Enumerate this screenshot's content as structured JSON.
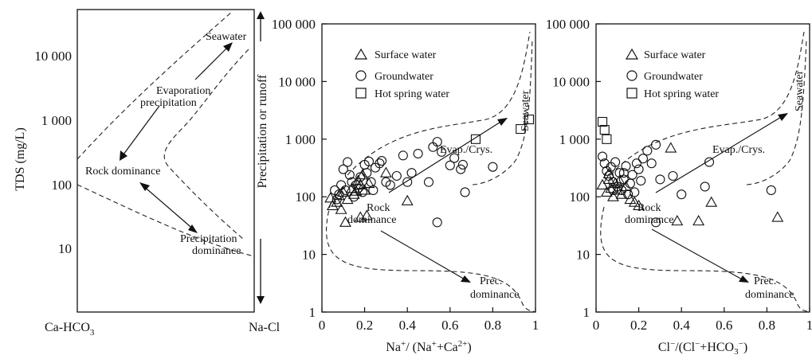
{
  "chart_data": [
    {
      "type": "diagram",
      "panel": "gibbs-schematic",
      "ylabel": "TDS (mg/L)",
      "ytick_labels": [
        "10",
        "100",
        "1 000",
        "10 000"
      ],
      "xlabel_left": "Ca-HCO",
      "xlabel_left_sub": "3",
      "xlabel_right": "Na-Cl",
      "annotations": {
        "seawater": "Seawater",
        "evap_line1": "Evaporation",
        "evap_line2": "precipitation",
        "rock": "Rock dominance",
        "prec_line1": "Precipitation",
        "prec_line2": "dominance"
      },
      "side_label": "Precipitation or runoff"
    },
    {
      "type": "scatter",
      "panel": "cation-gibbs",
      "xlabel": "Na+/ (Na++Ca2+)",
      "xlim": [
        0,
        1
      ],
      "ylim": [
        1,
        100000
      ],
      "y_scale": "log",
      "xtick_labels": [
        "0",
        "0.2",
        "0.4",
        "0.6",
        "0.8",
        "1"
      ],
      "ytick_labels": [
        "1",
        "10",
        "100",
        "1 000",
        "10 000",
        "100 000"
      ],
      "legend": [
        "Surface water",
        "Groundwater",
        "Hot spring water"
      ],
      "annotations": {
        "seawater": "Seawater",
        "evap": "Evap./Crys.",
        "rock_line1": "Rock",
        "rock_line2": "dominance",
        "prec_line1": "Prec.",
        "prec_line2": "dominance"
      },
      "series": [
        {
          "name": "Surface water",
          "marker": "triangle",
          "points": [
            [
              0.04,
              95
            ],
            [
              0.05,
              70
            ],
            [
              0.07,
              80
            ],
            [
              0.09,
              60
            ],
            [
              0.1,
              120
            ],
            [
              0.12,
              90
            ],
            [
              0.14,
              140
            ],
            [
              0.15,
              110
            ],
            [
              0.17,
              190
            ],
            [
              0.18,
              160
            ],
            [
              0.19,
              240
            ],
            [
              0.2,
              130
            ],
            [
              0.22,
              170
            ],
            [
              0.11,
              36
            ],
            [
              0.18,
              44
            ],
            [
              0.21,
              47
            ],
            [
              0.3,
              260
            ],
            [
              0.4,
              85
            ],
            [
              0.08,
              105
            ],
            [
              0.16,
              125
            ]
          ]
        },
        {
          "name": "Groundwater",
          "marker": "circle",
          "points": [
            [
              0.06,
              130
            ],
            [
              0.08,
              110
            ],
            [
              0.09,
              160
            ],
            [
              0.1,
              300
            ],
            [
              0.11,
              130
            ],
            [
              0.12,
              400
            ],
            [
              0.13,
              240
            ],
            [
              0.14,
              180
            ],
            [
              0.15,
              100
            ],
            [
              0.16,
              160
            ],
            [
              0.17,
              140
            ],
            [
              0.18,
              220
            ],
            [
              0.19,
              120
            ],
            [
              0.2,
              360
            ],
            [
              0.21,
              260
            ],
            [
              0.22,
              410
            ],
            [
              0.23,
              180
            ],
            [
              0.24,
              130
            ],
            [
              0.25,
              320
            ],
            [
              0.27,
              380
            ],
            [
              0.28,
              420
            ],
            [
              0.3,
              180
            ],
            [
              0.32,
              160
            ],
            [
              0.35,
              230
            ],
            [
              0.38,
              520
            ],
            [
              0.4,
              180
            ],
            [
              0.42,
              260
            ],
            [
              0.45,
              560
            ],
            [
              0.5,
              180
            ],
            [
              0.52,
              730
            ],
            [
              0.54,
              900
            ],
            [
              0.56,
              600
            ],
            [
              0.6,
              350
            ],
            [
              0.62,
              470
            ],
            [
              0.65,
              300
            ],
            [
              0.66,
              360
            ],
            [
              0.67,
              120
            ],
            [
              0.8,
              330
            ],
            [
              0.54,
              36
            ],
            [
              0.07,
              90
            ]
          ]
        },
        {
          "name": "Hot spring water",
          "marker": "square",
          "points": [
            [
              0.72,
              1000
            ],
            [
              0.93,
              1500
            ],
            [
              0.97,
              2200
            ]
          ]
        }
      ]
    },
    {
      "type": "scatter",
      "panel": "anion-gibbs",
      "xlabel": "Cl−/(Cl−+HCO3−)",
      "xlim": [
        0,
        1
      ],
      "ylim": [
        1,
        100000
      ],
      "y_scale": "log",
      "xtick_labels": [
        "0",
        "0.2",
        "0.4",
        "0.6",
        "0.8",
        "1"
      ],
      "ytick_labels": [
        "1",
        "10",
        "100",
        "1 000",
        "10 000",
        "100 000"
      ],
      "legend": [
        "Surface water",
        "Groundwater",
        "Hot spring water"
      ],
      "annotations": {
        "seawater": "Seawater",
        "evap": "Evap./Crys.",
        "rock_line1": "Rock",
        "rock_line2": "dominance",
        "prec_line1": "Prec.",
        "prec_line2": "dominance"
      },
      "series": [
        {
          "name": "Surface water",
          "marker": "triangle",
          "points": [
            [
              0.03,
              160
            ],
            [
              0.05,
              120
            ],
            [
              0.06,
              200
            ],
            [
              0.07,
              140
            ],
            [
              0.08,
              100
            ],
            [
              0.09,
              170
            ],
            [
              0.1,
              130
            ],
            [
              0.12,
              110
            ],
            [
              0.14,
              150
            ],
            [
              0.16,
              90
            ],
            [
              0.18,
              80
            ],
            [
              0.2,
              70
            ],
            [
              0.35,
              700
            ],
            [
              0.38,
              38
            ],
            [
              0.48,
              38
            ],
            [
              0.54,
              80
            ],
            [
              0.85,
              44
            ],
            [
              0.06,
              250
            ],
            [
              0.11,
              190
            ]
          ]
        },
        {
          "name": "Groundwater",
          "marker": "circle",
          "points": [
            [
              0.03,
              500
            ],
            [
              0.04,
              380
            ],
            [
              0.05,
              280
            ],
            [
              0.06,
              230
            ],
            [
              0.07,
              330
            ],
            [
              0.08,
              180
            ],
            [
              0.09,
              400
            ],
            [
              0.1,
              150
            ],
            [
              0.11,
              260
            ],
            [
              0.12,
              130
            ],
            [
              0.13,
              200
            ],
            [
              0.14,
              340
            ],
            [
              0.15,
              110
            ],
            [
              0.16,
              170
            ],
            [
              0.17,
              240
            ],
            [
              0.18,
              120
            ],
            [
              0.19,
              380
            ],
            [
              0.2,
              300
            ],
            [
              0.21,
              190
            ],
            [
              0.22,
              460
            ],
            [
              0.24,
              630
            ],
            [
              0.26,
              380
            ],
            [
              0.28,
              800
            ],
            [
              0.3,
              200
            ],
            [
              0.36,
              230
            ],
            [
              0.4,
              110
            ],
            [
              0.53,
              400
            ],
            [
              0.51,
              150
            ],
            [
              0.82,
              130
            ],
            [
              0.28,
              36
            ],
            [
              0.08,
              130
            ],
            [
              0.13,
              260
            ]
          ]
        },
        {
          "name": "Hot spring water",
          "marker": "square",
          "points": [
            [
              0.03,
              2000
            ],
            [
              0.04,
              1450
            ],
            [
              0.05,
              1000
            ]
          ]
        }
      ]
    }
  ]
}
